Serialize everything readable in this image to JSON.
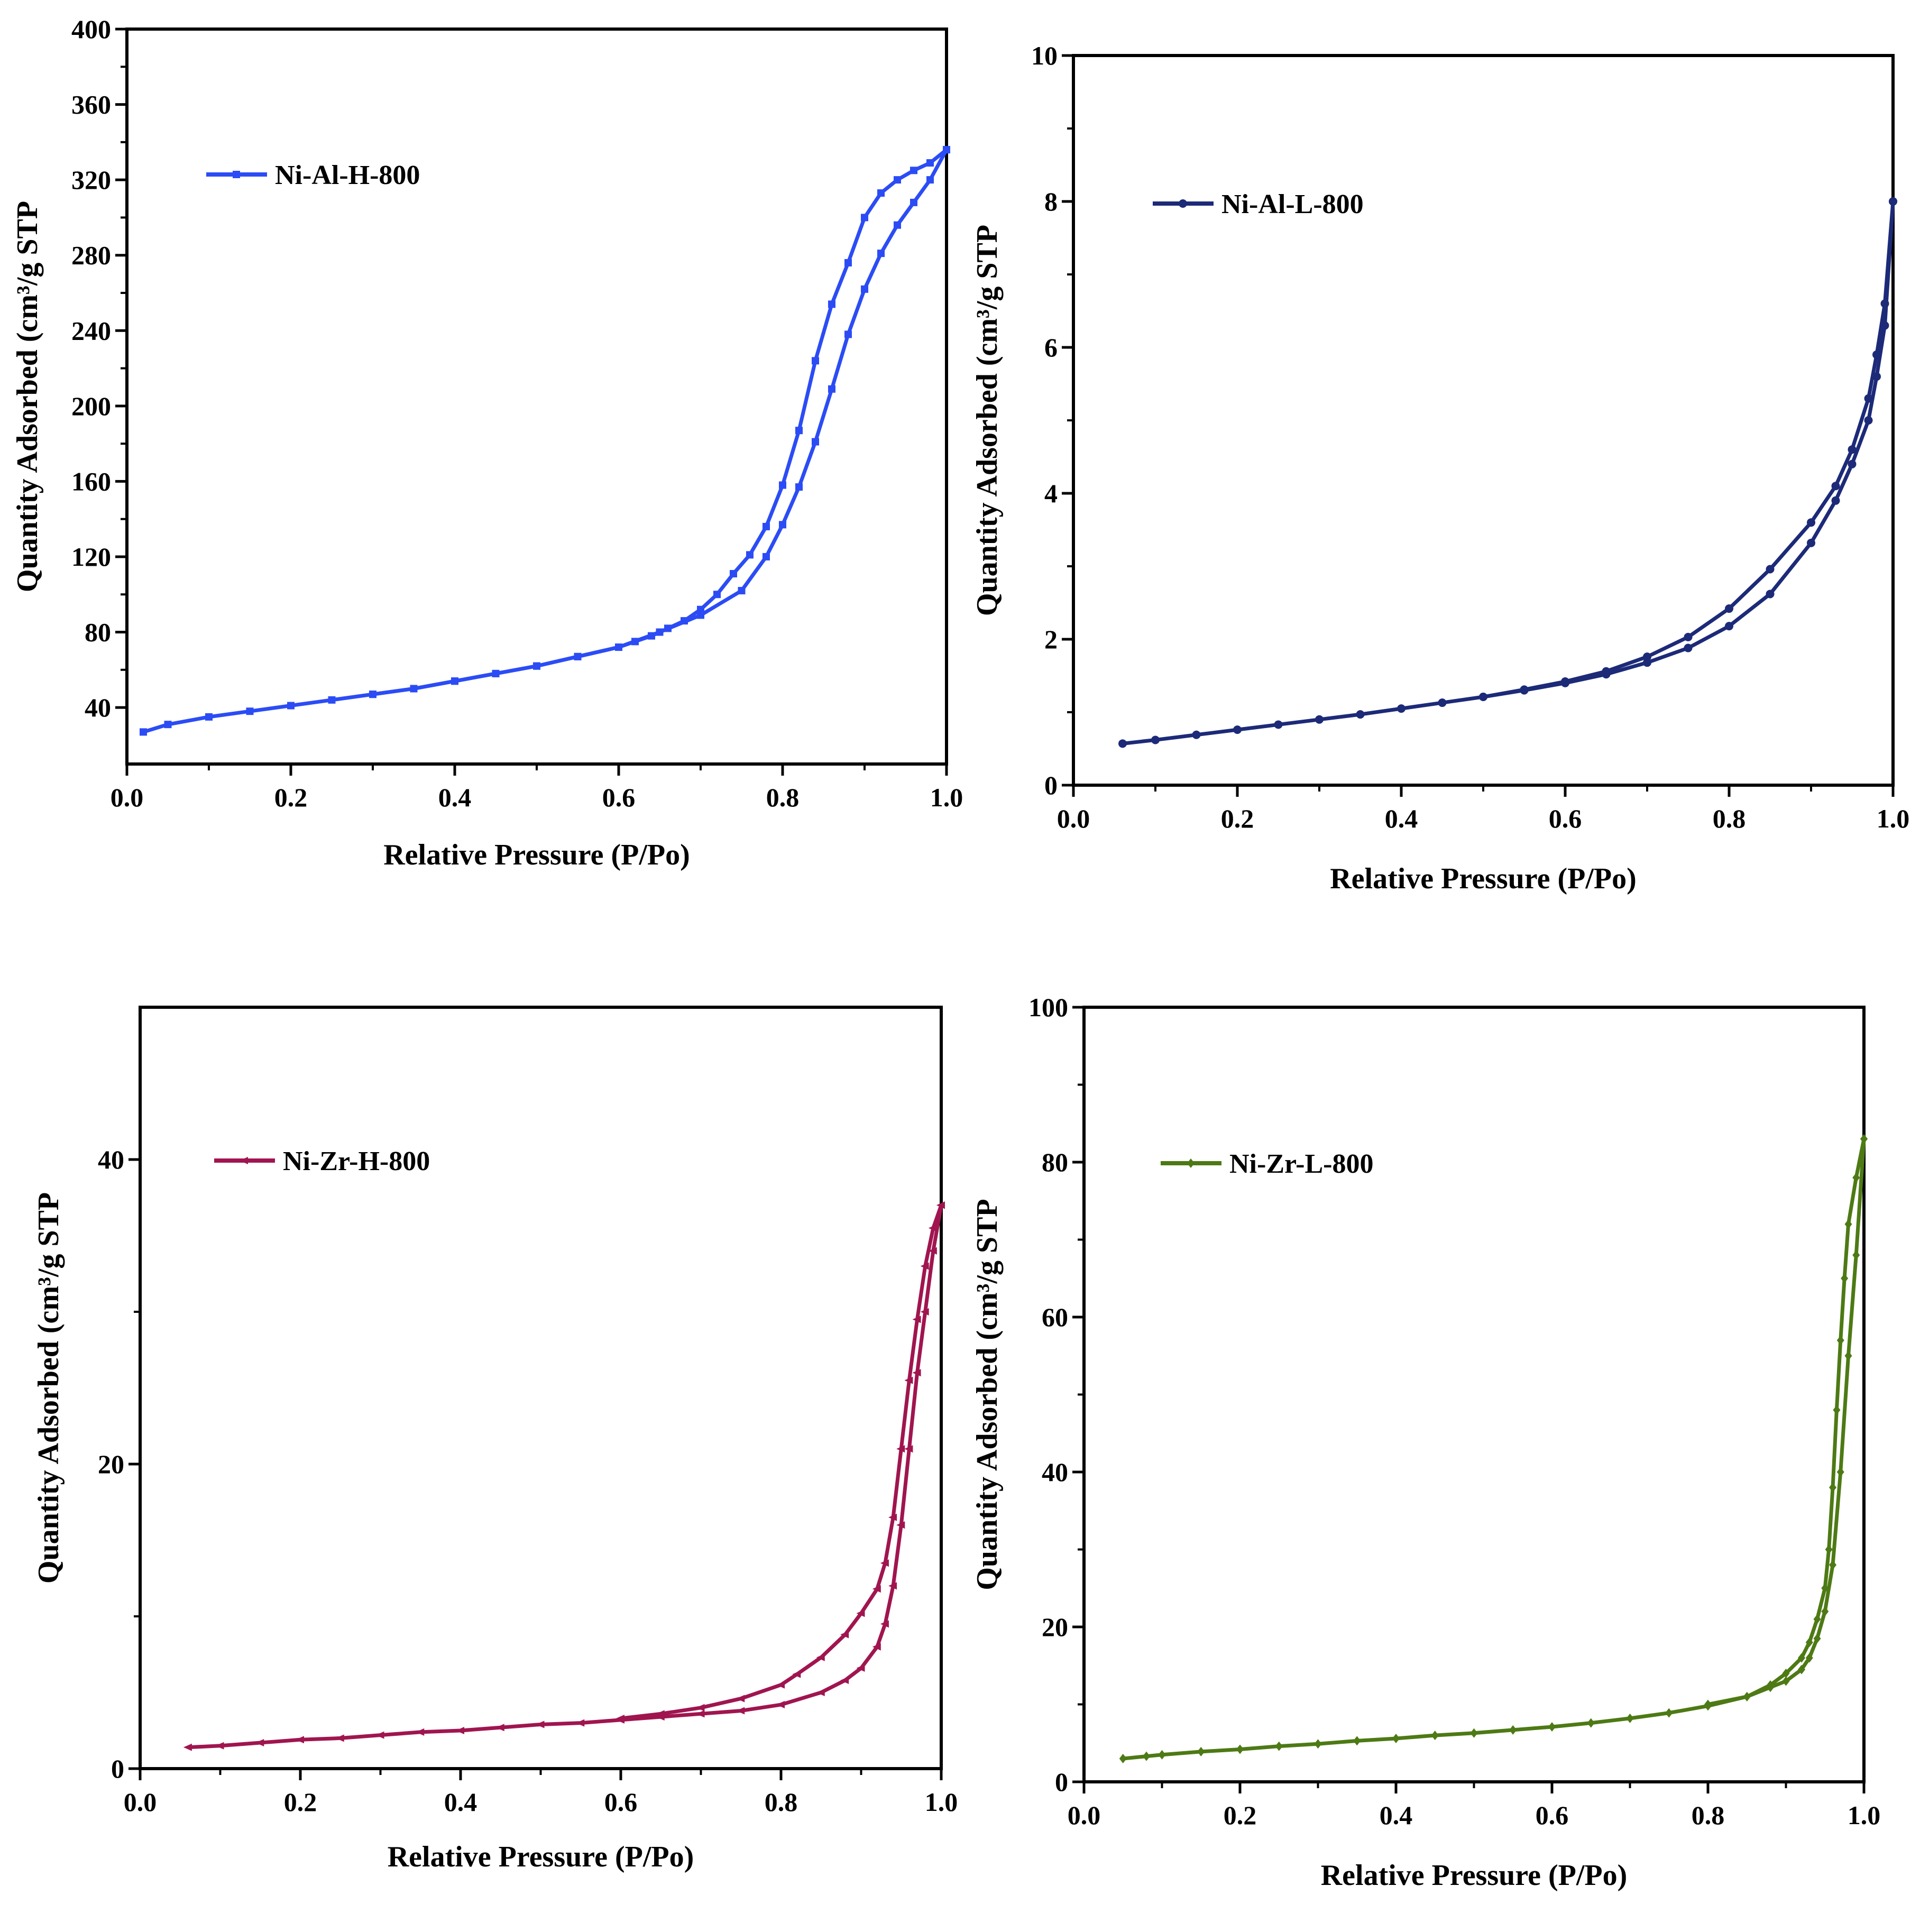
{
  "chart_data": [
    {
      "type": "line",
      "legend": "Ni-Al-H-800",
      "color": "#2b4cf5",
      "marker": "square",
      "xlabel": "Relative Pressure (P/Po)",
      "ylabel": "Quantity Adsorbed (cm³/g STP",
      "xlim": [
        0,
        1
      ],
      "ylim": [
        10,
        400
      ],
      "xticks": [
        "0.0",
        "0.2",
        "0.4",
        "0.6",
        "0.8",
        "1.0"
      ],
      "yticks": [
        "40",
        "80",
        "120",
        "160",
        "200",
        "240",
        "280",
        "320",
        "360",
        "400"
      ],
      "series": [
        {
          "branch": "adsorption",
          "x": [
            0.02,
            0.05,
            0.1,
            0.15,
            0.2,
            0.25,
            0.3,
            0.35,
            0.4,
            0.45,
            0.5,
            0.55,
            0.6,
            0.65,
            0.7,
            0.75,
            0.78,
            0.8,
            0.82,
            0.84,
            0.86,
            0.88,
            0.9,
            0.92,
            0.94,
            0.96,
            0.98,
            1.0
          ],
          "y": [
            27,
            31,
            35,
            38,
            41,
            44,
            47,
            50,
            54,
            58,
            62,
            67,
            72,
            80,
            89,
            102,
            120,
            137,
            157,
            181,
            209,
            238,
            262,
            281,
            296,
            308,
            320,
            336
          ]
        },
        {
          "branch": "desorption",
          "x": [
            1.0,
            0.98,
            0.96,
            0.94,
            0.92,
            0.9,
            0.88,
            0.86,
            0.84,
            0.82,
            0.8,
            0.78,
            0.76,
            0.74,
            0.72,
            0.7,
            0.68,
            0.66,
            0.64,
            0.62,
            0.6,
            0.55,
            0.5,
            0.45,
            0.4,
            0.35,
            0.3
          ],
          "y": [
            336,
            329,
            325,
            320,
            313,
            300,
            276,
            254,
            224,
            187,
            158,
            136,
            121,
            111,
            100,
            92,
            86,
            82,
            78,
            75,
            72,
            67,
            62,
            58,
            54,
            50,
            47
          ]
        }
      ]
    },
    {
      "type": "line",
      "legend": "Ni-Al-L-800",
      "color": "#1c2a78",
      "marker": "circle",
      "xlabel": "Relative Pressure (P/Po)",
      "ylabel": "Quantity Adsorbed (cm³/g STP",
      "xlim": [
        0,
        1
      ],
      "ylim": [
        0,
        10
      ],
      "xticks": [
        "0.0",
        "0.2",
        "0.4",
        "0.6",
        "0.8",
        "1.0"
      ],
      "yticks": [
        "0",
        "2",
        "4",
        "6",
        "8",
        "10"
      ],
      "series": [
        {
          "branch": "adsorption",
          "x": [
            0.06,
            0.1,
            0.15,
            0.2,
            0.25,
            0.3,
            0.35,
            0.4,
            0.45,
            0.5,
            0.55,
            0.6,
            0.65,
            0.7,
            0.75,
            0.8,
            0.85,
            0.9,
            0.93,
            0.95,
            0.97,
            0.98,
            0.99,
            1.0
          ],
          "y": [
            0.57,
            0.62,
            0.69,
            0.76,
            0.83,
            0.9,
            0.97,
            1.05,
            1.13,
            1.21,
            1.3,
            1.4,
            1.52,
            1.68,
            1.88,
            2.18,
            2.62,
            3.32,
            3.9,
            4.4,
            5.0,
            5.6,
            6.3,
            8.0
          ]
        },
        {
          "branch": "desorption",
          "x": [
            1.0,
            0.99,
            0.98,
            0.97,
            0.95,
            0.93,
            0.9,
            0.85,
            0.8,
            0.75,
            0.7,
            0.65,
            0.6,
            0.55,
            0.5
          ],
          "y": [
            8.0,
            6.6,
            5.9,
            5.3,
            4.6,
            4.1,
            3.6,
            2.96,
            2.42,
            2.03,
            1.76,
            1.56,
            1.42,
            1.31,
            1.21
          ]
        }
      ]
    },
    {
      "type": "line",
      "legend": "Ni-Zr-H-800",
      "color": "#a0154f",
      "marker": "triangle",
      "xlabel": "Relative Pressure (P/Po)",
      "ylabel": "Quantity Adsorbed (cm³/g STP",
      "xlim": [
        0,
        1
      ],
      "ylim": [
        0,
        50
      ],
      "xticks": [
        "0.0",
        "0.2",
        "0.4",
        "0.6",
        "0.8",
        "1.0"
      ],
      "yticks": [
        "0",
        "20",
        "40"
      ],
      "series": [
        {
          "branch": "adsorption",
          "x": [
            0.06,
            0.1,
            0.15,
            0.2,
            0.25,
            0.3,
            0.35,
            0.4,
            0.45,
            0.5,
            0.55,
            0.6,
            0.65,
            0.7,
            0.75,
            0.8,
            0.85,
            0.88,
            0.9,
            0.92,
            0.93,
            0.94,
            0.95,
            0.96,
            0.97,
            0.98,
            0.99,
            1.0
          ],
          "y": [
            1.4,
            1.5,
            1.7,
            1.9,
            2.0,
            2.2,
            2.4,
            2.5,
            2.7,
            2.9,
            3.0,
            3.2,
            3.4,
            3.6,
            3.8,
            4.2,
            5.0,
            5.8,
            6.6,
            8.0,
            9.5,
            12.0,
            16.0,
            21.0,
            26.0,
            30.0,
            34.0,
            37.0
          ]
        },
        {
          "branch": "desorption",
          "x": [
            1.0,
            0.99,
            0.98,
            0.97,
            0.96,
            0.95,
            0.94,
            0.93,
            0.92,
            0.9,
            0.88,
            0.85,
            0.82,
            0.8,
            0.75,
            0.7,
            0.65,
            0.6
          ],
          "y": [
            37.0,
            35.5,
            33.0,
            29.5,
            25.5,
            21.0,
            16.5,
            13.5,
            11.8,
            10.2,
            8.8,
            7.3,
            6.2,
            5.5,
            4.6,
            4.0,
            3.6,
            3.3
          ]
        }
      ]
    },
    {
      "type": "line",
      "legend": "Ni-Zr-L-800",
      "color": "#4d7a14",
      "marker": "diamond",
      "xlabel": "Relative Pressure (P/Po)",
      "ylabel": "Quantity Adsorbed (cm³/g STP",
      "xlim": [
        0,
        1
      ],
      "ylim": [
        0,
        100
      ],
      "xticks": [
        "0.0",
        "0.2",
        "0.4",
        "0.6",
        "0.8",
        "1.0"
      ],
      "yticks": [
        "0",
        "20",
        "40",
        "60",
        "80",
        "100"
      ],
      "series": [
        {
          "branch": "adsorption",
          "x": [
            0.05,
            0.08,
            0.1,
            0.15,
            0.2,
            0.25,
            0.3,
            0.35,
            0.4,
            0.45,
            0.5,
            0.55,
            0.6,
            0.65,
            0.7,
            0.75,
            0.8,
            0.85,
            0.88,
            0.9,
            0.92,
            0.93,
            0.94,
            0.95,
            0.96,
            0.97,
            0.98,
            0.99,
            1.0
          ],
          "y": [
            3.0,
            3.3,
            3.5,
            3.9,
            4.2,
            4.6,
            4.9,
            5.3,
            5.6,
            6.0,
            6.3,
            6.7,
            7.1,
            7.6,
            8.2,
            8.9,
            9.8,
            11.0,
            12.2,
            13.0,
            14.5,
            16.0,
            18.5,
            22.0,
            28.0,
            40.0,
            55.0,
            68.0,
            83.0
          ]
        },
        {
          "branch": "desorption",
          "x": [
            1.0,
            0.99,
            0.98,
            0.975,
            0.97,
            0.965,
            0.96,
            0.955,
            0.95,
            0.94,
            0.93,
            0.92,
            0.9,
            0.88,
            0.85,
            0.8
          ],
          "y": [
            83.0,
            78.0,
            72.0,
            65.0,
            57.0,
            48.0,
            38.0,
            30.0,
            25.0,
            21.0,
            18.0,
            16.0,
            14.0,
            12.5,
            11.0,
            10.0
          ]
        }
      ]
    }
  ]
}
